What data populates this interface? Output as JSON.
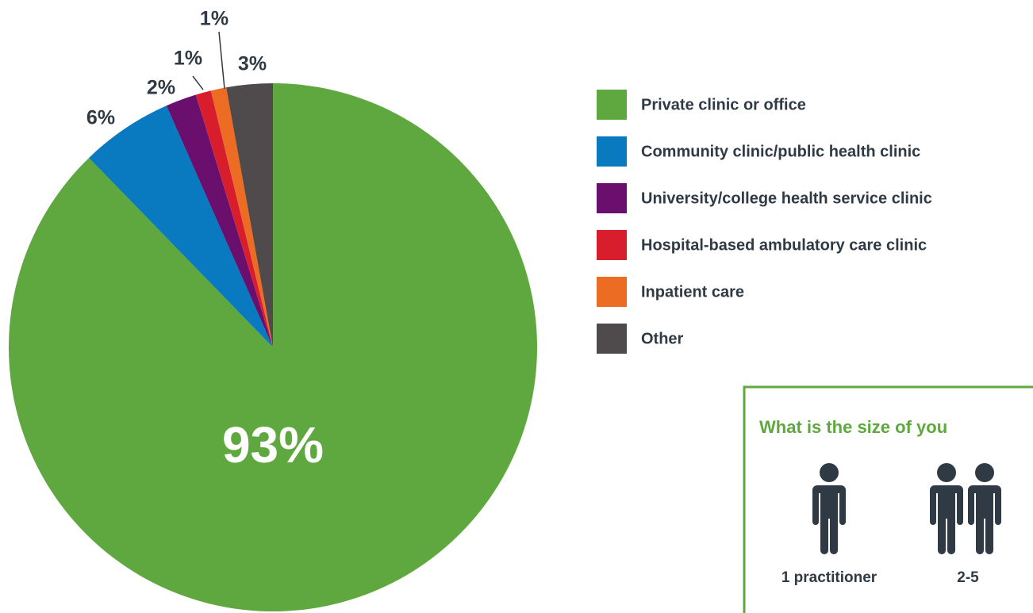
{
  "chart_data": {
    "type": "pie",
    "categories": [
      "Private clinic or office",
      "Community clinic/public health clinic",
      "University/college health service clinic",
      "Hospital-based ambulatory care clinic",
      "Inpatient care",
      "Other"
    ],
    "values": [
      93,
      6,
      2,
      1,
      1,
      3
    ],
    "value_labels": [
      "93%",
      "6%",
      "2%",
      "1%",
      "1%",
      "3%"
    ],
    "colors": [
      "#5fa83f",
      "#0a7ac0",
      "#6a0f6e",
      "#d81e2c",
      "#ec6c23",
      "#4f4a4b"
    ]
  },
  "panel": {
    "title": "What is the size of you",
    "items": [
      "1 practitioner",
      "2-5"
    ]
  }
}
